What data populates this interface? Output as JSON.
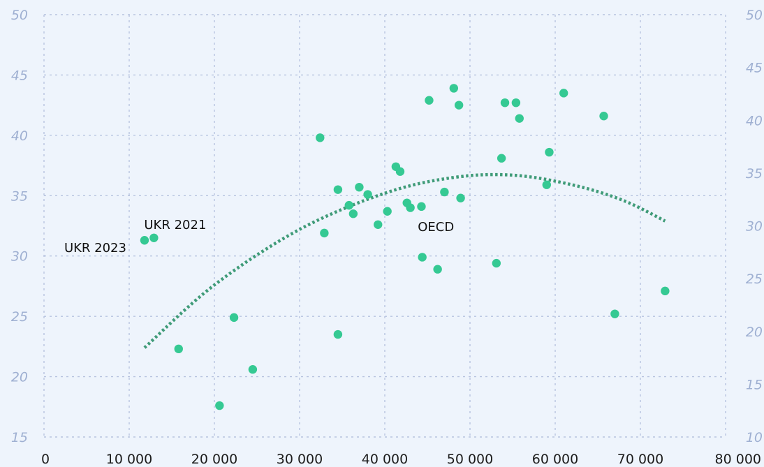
{
  "chart_data": {
    "type": "scatter",
    "title": "",
    "xlabel": "",
    "ylabel": "",
    "xlim": [
      0,
      80000
    ],
    "ylim": [
      15,
      50
    ],
    "y2lim": [
      10,
      50
    ],
    "grid": true,
    "x_ticks": [
      "0",
      "10 000",
      "20 000",
      "30 000",
      "40 000",
      "50 000",
      "60 000",
      "70 000",
      "80 000"
    ],
    "y_ticks": [
      "15",
      "20",
      "25",
      "30",
      "35",
      "40",
      "45",
      "50"
    ],
    "y2_ticks": [
      "10",
      "15",
      "20",
      "25",
      "30",
      "35",
      "40",
      "45",
      "50"
    ],
    "colors": {
      "points": "#35c993",
      "trend": "#3f9b78",
      "tick_left": "#9fb0d2",
      "grid": "#b7c3df",
      "background": "#eef4fc"
    },
    "points": [
      {
        "x": 11800,
        "y": 31.3
      },
      {
        "x": 12900,
        "y": 31.5
      },
      {
        "x": 15800,
        "y": 22.3
      },
      {
        "x": 20600,
        "y": 17.6
      },
      {
        "x": 22300,
        "y": 24.9
      },
      {
        "x": 24500,
        "y": 20.6
      },
      {
        "x": 32400,
        "y": 39.8
      },
      {
        "x": 32900,
        "y": 31.9
      },
      {
        "x": 34500,
        "y": 35.5
      },
      {
        "x": 34500,
        "y": 23.5
      },
      {
        "x": 35800,
        "y": 34.2
      },
      {
        "x": 36300,
        "y": 33.5
      },
      {
        "x": 37000,
        "y": 35.7
      },
      {
        "x": 38000,
        "y": 35.1
      },
      {
        "x": 39200,
        "y": 32.6
      },
      {
        "x": 40300,
        "y": 33.7
      },
      {
        "x": 41300,
        "y": 37.4
      },
      {
        "x": 41800,
        "y": 37.0
      },
      {
        "x": 42600,
        "y": 34.4
      },
      {
        "x": 43000,
        "y": 34.0
      },
      {
        "x": 44300,
        "y": 34.1
      },
      {
        "x": 44400,
        "y": 29.9
      },
      {
        "x": 45200,
        "y": 42.9
      },
      {
        "x": 46200,
        "y": 28.9
      },
      {
        "x": 47000,
        "y": 35.3
      },
      {
        "x": 48100,
        "y": 43.9
      },
      {
        "x": 48700,
        "y": 42.5
      },
      {
        "x": 48900,
        "y": 34.8
      },
      {
        "x": 53100,
        "y": 29.4
      },
      {
        "x": 53700,
        "y": 38.1
      },
      {
        "x": 54100,
        "y": 42.7
      },
      {
        "x": 55400,
        "y": 42.7
      },
      {
        "x": 55800,
        "y": 41.4
      },
      {
        "x": 59000,
        "y": 35.9
      },
      {
        "x": 59300,
        "y": 38.6
      },
      {
        "x": 61000,
        "y": 43.5
      },
      {
        "x": 65700,
        "y": 41.6
      },
      {
        "x": 67000,
        "y": 25.2
      },
      {
        "x": 72900,
        "y": 27.1
      }
    ],
    "trend": {
      "style": "dotted",
      "points": [
        {
          "x": 11800,
          "y": 22.4
        },
        {
          "x": 20000,
          "y": 27.6
        },
        {
          "x": 30000,
          "y": 32.2
        },
        {
          "x": 40000,
          "y": 35.2
        },
        {
          "x": 48000,
          "y": 36.5
        },
        {
          "x": 55000,
          "y": 36.7
        },
        {
          "x": 62000,
          "y": 35.9
        },
        {
          "x": 68000,
          "y": 34.6
        },
        {
          "x": 72900,
          "y": 32.9
        }
      ]
    },
    "annotations": [
      {
        "text": "UKR 2023",
        "x": 11800,
        "y": 31.3,
        "anchor": "left"
      },
      {
        "text": "UKR 2021",
        "x": 12900,
        "y": 31.5,
        "anchor": "above"
      },
      {
        "text": "OECD",
        "x": 46000,
        "y": 32.4,
        "anchor": "center"
      }
    ]
  }
}
